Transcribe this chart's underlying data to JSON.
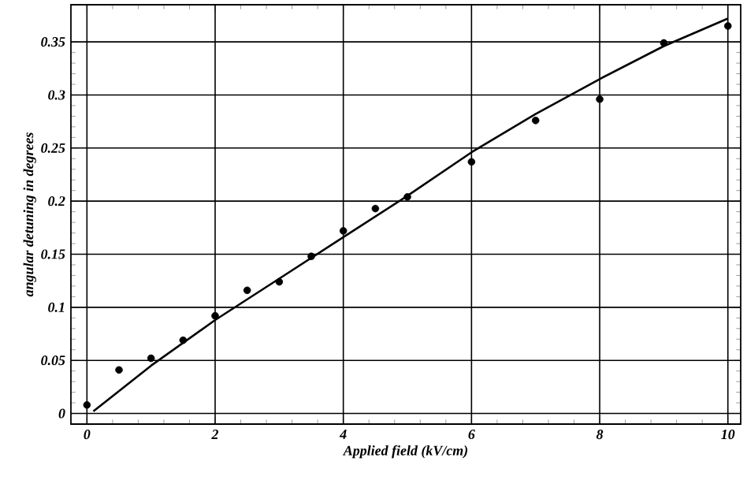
{
  "chart_data": {
    "type": "scatter",
    "xlabel": "Applied field (kV/cm)",
    "ylabel": "angular detuning in degrees",
    "xlim": [
      -0.25,
      10.2
    ],
    "ylim": [
      -0.01,
      0.385
    ],
    "xticks": [
      0,
      2,
      4,
      6,
      8,
      10
    ],
    "yticks": [
      0,
      0.05,
      0.1,
      0.15,
      0.2,
      0.25,
      0.3,
      0.35
    ],
    "grid": true,
    "series": [
      {
        "type": "scatter",
        "color": "#000000",
        "marker": "circle",
        "x": [
          0,
          0.5,
          1,
          1.5,
          2,
          2.5,
          3,
          3.5,
          4,
          4.5,
          5,
          6,
          7,
          8,
          9,
          10
        ],
        "values": [
          0.008,
          0.041,
          0.052,
          0.069,
          0.092,
          0.116,
          0.124,
          0.148,
          0.172,
          0.193,
          0.204,
          0.237,
          0.276,
          0.296,
          0.349,
          0.365
        ]
      },
      {
        "type": "line",
        "color": "#000000",
        "marker": "none",
        "line_style": "solid",
        "x": [
          0.1,
          1,
          2,
          3,
          4,
          5,
          6,
          7,
          8,
          9,
          10
        ],
        "values": [
          0.002,
          0.045,
          0.088,
          0.127,
          0.166,
          0.205,
          0.246,
          0.282,
          0.315,
          0.346,
          0.372
        ]
      }
    ]
  }
}
